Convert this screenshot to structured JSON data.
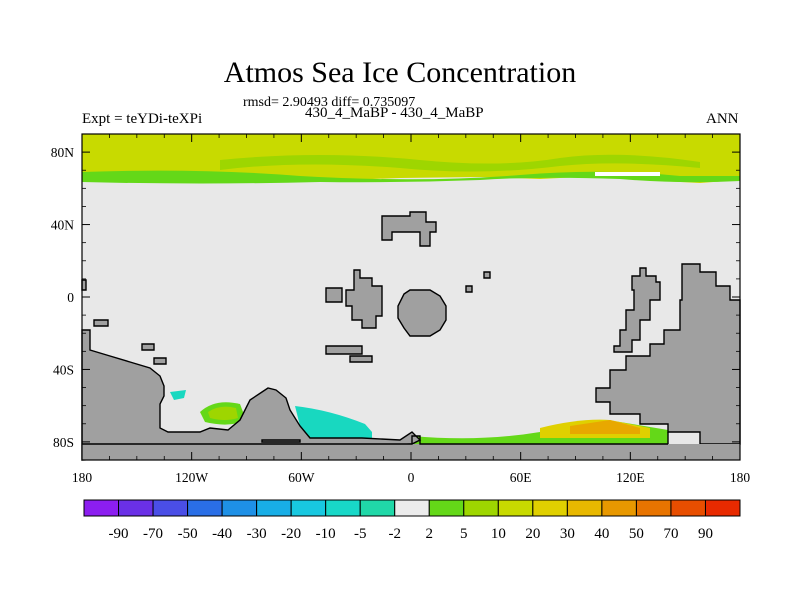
{
  "title": "Atmos Sea Ice Concentration",
  "subtitle": "rmsd= 2.90493 diff= 0.735097",
  "left_label": "Expt = teYDi-teXPi",
  "center_label": "430_4_MaBP - 430_4_MaBP",
  "right_label": "ANN",
  "colors": {
    "land": "#a0a0a0",
    "ocean_zero": "#e8e8e8",
    "high_green": "#c8da00",
    "mid_green": "#9ed600",
    "bright_green": "#64d818",
    "cyan": "#18d8c0",
    "teal": "#30c8b8",
    "orange": "#e8a800",
    "yellow": "#e0d000"
  },
  "chart_data": {
    "type": "heatmap",
    "title": "Atmos Sea Ice Concentration",
    "subtitle": "rmsd= 2.90493 diff= 0.735097",
    "map": "cylindrical-equidistant",
    "xlim": [
      -180,
      180
    ],
    "ylim": [
      -90,
      90
    ],
    "x_ticks": [
      -180,
      -120,
      -60,
      0,
      60,
      120,
      180
    ],
    "x_tick_labels": [
      "180",
      "120W",
      "60W",
      "0",
      "60E",
      "120E",
      "180"
    ],
    "y_ticks": [
      80,
      40,
      0,
      -40,
      -80
    ],
    "y_tick_labels": [
      "80N",
      "40N",
      "0",
      "40S",
      "80S"
    ],
    "colorbar": {
      "levels": [
        "-90",
        "-70",
        "-50",
        "-40",
        "-30",
        "-20",
        "-10",
        "-5",
        "-2",
        "2",
        "5",
        "10",
        "20",
        "30",
        "40",
        "50",
        "70",
        "90"
      ],
      "colors": [
        "#8c1ef0",
        "#6a30e6",
        "#4a4ee6",
        "#2a6ee6",
        "#1e90e6",
        "#18aee6",
        "#18c8e0",
        "#18d8c8",
        "#20d8a8",
        "#ececec",
        "#64d818",
        "#9ed600",
        "#c8da00",
        "#e0d000",
        "#e8b800",
        "#e89800",
        "#e87400",
        "#e84e00",
        "#e82a00"
      ]
    }
  }
}
